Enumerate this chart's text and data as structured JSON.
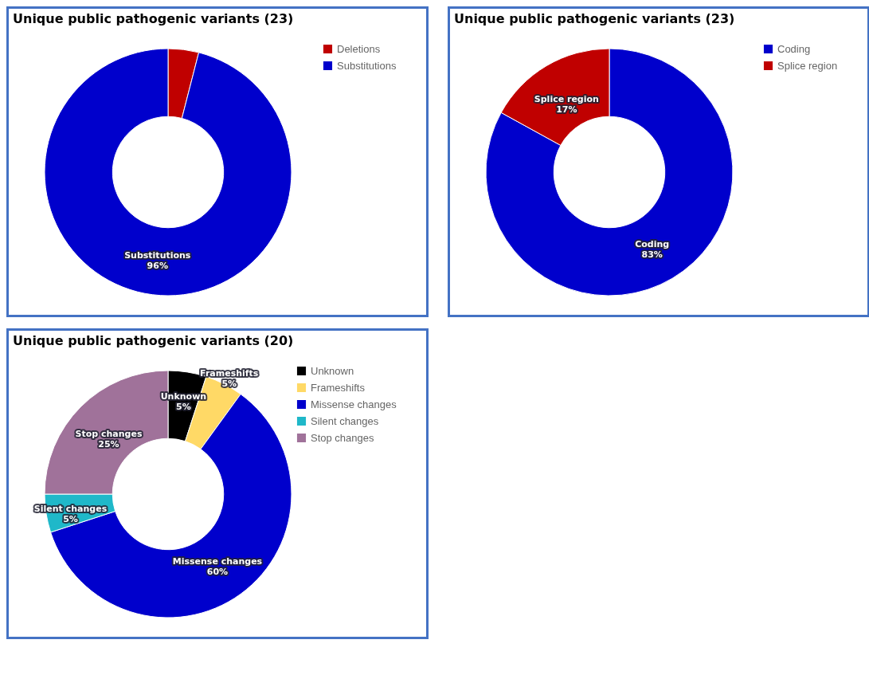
{
  "chart_data": [
    {
      "type": "donut",
      "title": "Unique public pathogenic variants (23)",
      "categories": [
        "Deletions",
        "Substitutions"
      ],
      "values": [
        4,
        96
      ],
      "colors": [
        "#c00000",
        "#0000cc"
      ],
      "value_labels": [
        null,
        "96%"
      ],
      "legend": "top right"
    },
    {
      "type": "donut",
      "title": "Unique public pathogenic variants (23)",
      "categories": [
        "Coding",
        "Splice region"
      ],
      "values": [
        83,
        17
      ],
      "colors": [
        "#0000cc",
        "#c00000"
      ],
      "value_labels": [
        "83%",
        "17%"
      ],
      "legend": "top right"
    },
    {
      "type": "donut",
      "title": "Unique public pathogenic variants (20)",
      "categories": [
        "Unknown",
        "Frameshifts",
        "Missense changes",
        "Silent changes",
        "Stop changes"
      ],
      "values": [
        5,
        5,
        60,
        5,
        25
      ],
      "colors": [
        "#000000",
        "#ffd966",
        "#0000cc",
        "#1fb8c9",
        "#a0729a"
      ],
      "value_labels": [
        "5%",
        "5%",
        "60%",
        "5%",
        "25%"
      ],
      "legend": "top right"
    }
  ]
}
